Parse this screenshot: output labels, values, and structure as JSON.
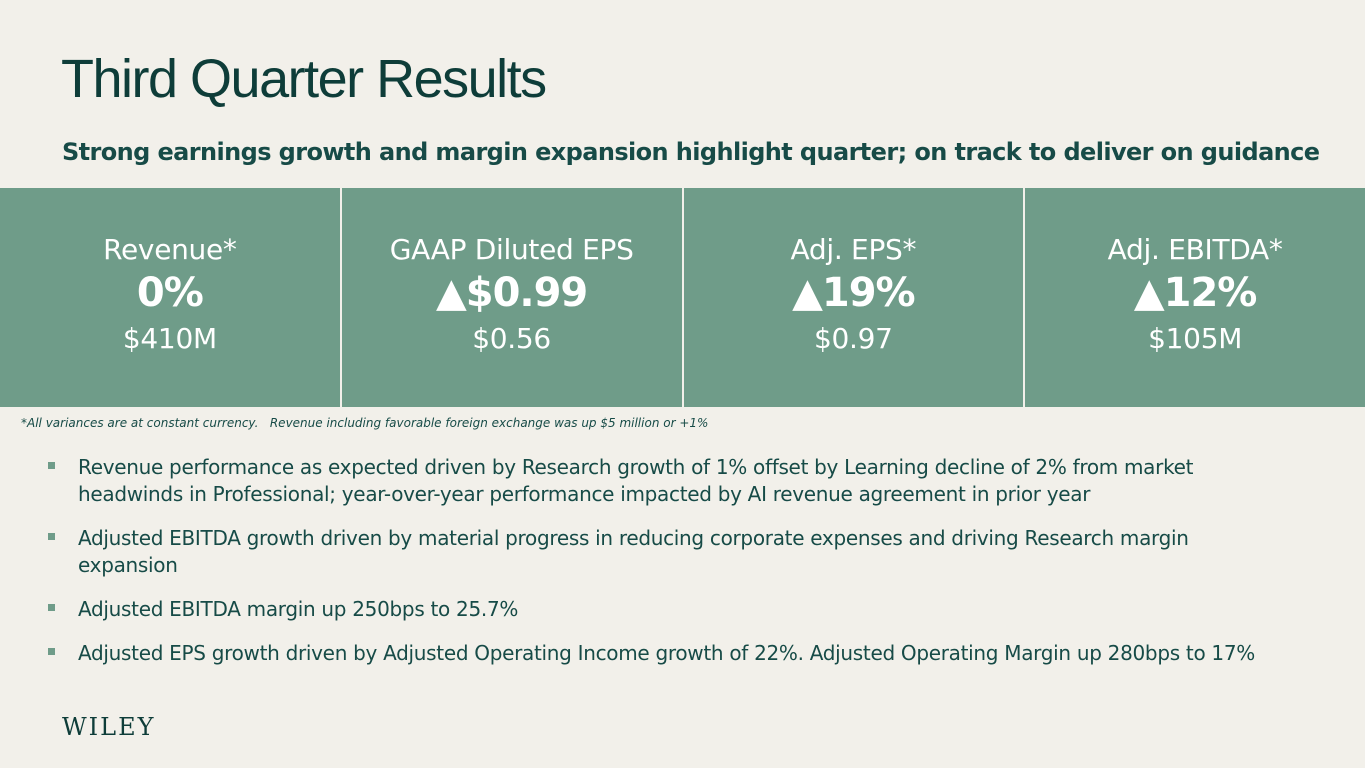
{
  "page": {
    "title": "Third Quarter Results",
    "subtitle": "Strong earnings growth and margin expansion highlight quarter; on track to deliver on guidance"
  },
  "kpis": [
    {
      "label": "Revenue*",
      "change": "0%",
      "value": "$410M"
    },
    {
      "label": "GAAP Diluted EPS",
      "change": "▲$0.99",
      "value": "$0.56"
    },
    {
      "label": "Adj. EPS*",
      "change": "▲19%",
      "value": "$0.97"
    },
    {
      "label": "Adj. EBITDA*",
      "change": "▲12%",
      "value": "$105M"
    }
  ],
  "footnote": "*All variances are at constant currency.   Revenue including favorable foreign exchange was up $5 million or +1%",
  "bullets": [
    "Revenue performance as expected driven by Research growth of 1% offset by Learning decline of 2% from market headwinds in Professional; year-over-year performance impacted by AI revenue agreement in prior year",
    "Adjusted EBITDA growth driven by material progress in reducing corporate expenses and driving Research margin expansion",
    "Adjusted EBITDA margin up 250bps to 25.7%",
    "Adjusted EPS growth driven by Adjusted Operating Income growth of 22%.  Adjusted Operating Margin up 280bps to 17%"
  ],
  "logo": {
    "text": "WILEY"
  },
  "colors": {
    "background": "#f2f0ea",
    "kpi_band": "#6f9c89",
    "heading": "#0e3d39",
    "text": "#174b47"
  }
}
